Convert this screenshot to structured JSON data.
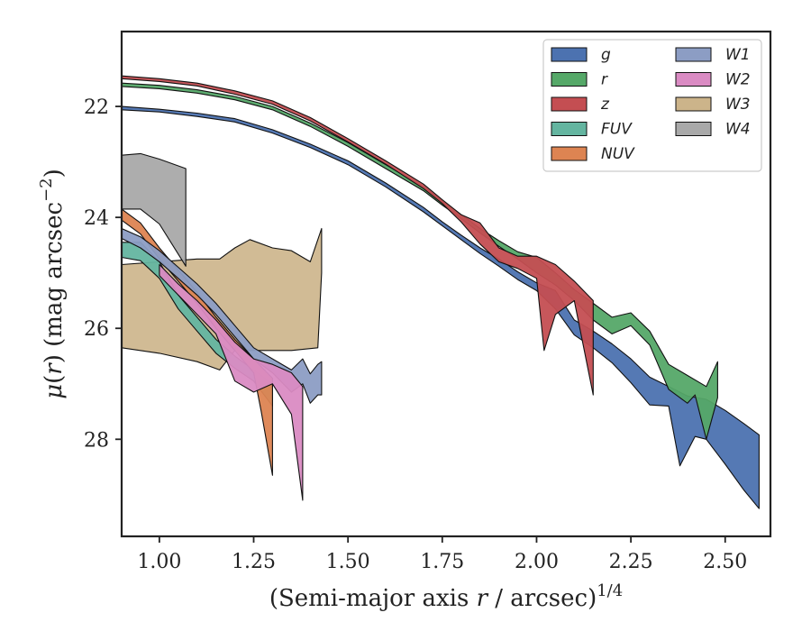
{
  "chart_data": {
    "type": "area",
    "xlabel": "(Semi-major axis r / arcsec)^1/4",
    "ylabel": "μ(r) (mag arcsec^−2)",
    "xlim": [
      0.9,
      2.62
    ],
    "ylim": [
      29.75,
      20.65
    ],
    "y_inverted": true,
    "x_ticks": [
      1.0,
      1.25,
      1.5,
      1.75,
      2.0,
      2.25,
      2.5
    ],
    "x_tick_labels": [
      "1.00",
      "1.25",
      "1.50",
      "1.75",
      "2.00",
      "2.25",
      "2.50"
    ],
    "y_ticks": [
      22,
      24,
      26,
      28
    ],
    "y_tick_labels": [
      "22",
      "24",
      "26",
      "28"
    ],
    "grid": false,
    "legend": {
      "placement": "top-right",
      "columns": 2
    },
    "series": [
      {
        "name": "g",
        "color": "#4c72b0",
        "upper": [
          [
            0.9,
            22.0
          ],
          [
            1.0,
            22.05
          ],
          [
            1.1,
            22.12
          ],
          [
            1.2,
            22.22
          ],
          [
            1.3,
            22.42
          ],
          [
            1.4,
            22.68
          ],
          [
            1.5,
            22.98
          ],
          [
            1.6,
            23.38
          ],
          [
            1.7,
            23.82
          ],
          [
            1.75,
            24.08
          ],
          [
            1.8,
            24.32
          ],
          [
            1.85,
            24.55
          ],
          [
            1.9,
            24.75
          ],
          [
            1.95,
            24.98
          ],
          [
            2.0,
            25.18
          ],
          [
            2.05,
            25.32
          ],
          [
            2.1,
            25.85
          ],
          [
            2.15,
            26.05
          ],
          [
            2.2,
            26.28
          ],
          [
            2.25,
            26.55
          ],
          [
            2.3,
            26.88
          ],
          [
            2.35,
            27.05
          ],
          [
            2.4,
            27.22
          ],
          [
            2.45,
            27.28
          ],
          [
            2.5,
            27.48
          ],
          [
            2.55,
            27.72
          ],
          [
            2.59,
            27.92
          ]
        ],
        "lower": [
          [
            0.9,
            22.06
          ],
          [
            1.0,
            22.1
          ],
          [
            1.1,
            22.18
          ],
          [
            1.2,
            22.28
          ],
          [
            1.3,
            22.48
          ],
          [
            1.4,
            22.74
          ],
          [
            1.5,
            23.05
          ],
          [
            1.6,
            23.45
          ],
          [
            1.7,
            23.9
          ],
          [
            1.75,
            24.15
          ],
          [
            1.8,
            24.4
          ],
          [
            1.85,
            24.65
          ],
          [
            1.9,
            24.88
          ],
          [
            1.95,
            25.12
          ],
          [
            2.0,
            25.32
          ],
          [
            2.05,
            25.65
          ],
          [
            2.1,
            26.12
          ],
          [
            2.15,
            26.35
          ],
          [
            2.2,
            26.62
          ],
          [
            2.25,
            26.98
          ],
          [
            2.3,
            27.38
          ],
          [
            2.35,
            27.4
          ],
          [
            2.38,
            28.48
          ],
          [
            2.42,
            27.95
          ],
          [
            2.45,
            28.0
          ],
          [
            2.5,
            28.45
          ],
          [
            2.55,
            28.92
          ],
          [
            2.59,
            29.25
          ]
        ]
      },
      {
        "name": "r",
        "color": "#55a868",
        "upper": [
          [
            0.9,
            21.58
          ],
          [
            1.0,
            21.62
          ],
          [
            1.1,
            21.7
          ],
          [
            1.2,
            21.82
          ],
          [
            1.3,
            22.0
          ],
          [
            1.4,
            22.3
          ],
          [
            1.5,
            22.65
          ],
          [
            1.6,
            23.05
          ],
          [
            1.7,
            23.45
          ],
          [
            1.75,
            23.7
          ],
          [
            1.8,
            23.95
          ],
          [
            1.85,
            24.2
          ],
          [
            1.9,
            24.42
          ],
          [
            1.95,
            24.62
          ],
          [
            2.0,
            24.72
          ],
          [
            2.05,
            25.0
          ],
          [
            2.1,
            25.3
          ],
          [
            2.15,
            25.55
          ],
          [
            2.2,
            25.8
          ],
          [
            2.25,
            25.72
          ],
          [
            2.3,
            26.05
          ],
          [
            2.35,
            26.65
          ],
          [
            2.4,
            26.85
          ],
          [
            2.45,
            27.05
          ],
          [
            2.48,
            26.6
          ]
        ],
        "lower": [
          [
            0.9,
            21.64
          ],
          [
            1.0,
            21.68
          ],
          [
            1.1,
            21.76
          ],
          [
            1.2,
            21.88
          ],
          [
            1.3,
            22.06
          ],
          [
            1.4,
            22.36
          ],
          [
            1.5,
            22.72
          ],
          [
            1.6,
            23.12
          ],
          [
            1.7,
            23.52
          ],
          [
            1.75,
            23.78
          ],
          [
            1.8,
            24.02
          ],
          [
            1.85,
            24.28
          ],
          [
            1.9,
            24.52
          ],
          [
            1.95,
            24.75
          ],
          [
            2.0,
            25.0
          ],
          [
            2.05,
            25.22
          ],
          [
            2.1,
            25.5
          ],
          [
            2.15,
            25.85
          ],
          [
            2.2,
            26.1
          ],
          [
            2.25,
            25.95
          ],
          [
            2.3,
            26.3
          ],
          [
            2.35,
            27.1
          ],
          [
            2.4,
            27.35
          ],
          [
            2.42,
            27.2
          ],
          [
            2.45,
            28.0
          ],
          [
            2.48,
            27.25
          ]
        ]
      },
      {
        "name": "z",
        "color": "#c44e52",
        "upper": [
          [
            0.9,
            21.45
          ],
          [
            1.0,
            21.5
          ],
          [
            1.1,
            21.58
          ],
          [
            1.2,
            21.72
          ],
          [
            1.3,
            21.9
          ],
          [
            1.4,
            22.2
          ],
          [
            1.5,
            22.58
          ],
          [
            1.6,
            22.98
          ],
          [
            1.7,
            23.4
          ],
          [
            1.75,
            23.68
          ],
          [
            1.8,
            23.95
          ],
          [
            1.85,
            24.1
          ],
          [
            1.9,
            24.55
          ],
          [
            1.95,
            24.7
          ],
          [
            2.0,
            24.7
          ],
          [
            2.05,
            24.85
          ],
          [
            2.1,
            25.15
          ],
          [
            2.15,
            25.5
          ]
        ],
        "lower": [
          [
            0.9,
            21.5
          ],
          [
            1.0,
            21.55
          ],
          [
            1.1,
            21.63
          ],
          [
            1.2,
            21.78
          ],
          [
            1.3,
            21.96
          ],
          [
            1.4,
            22.26
          ],
          [
            1.5,
            22.64
          ],
          [
            1.6,
            23.04
          ],
          [
            1.7,
            23.48
          ],
          [
            1.75,
            23.75
          ],
          [
            1.8,
            24.08
          ],
          [
            1.85,
            24.48
          ],
          [
            1.9,
            24.8
          ],
          [
            1.95,
            24.92
          ],
          [
            2.0,
            25.1
          ],
          [
            2.02,
            26.4
          ],
          [
            2.05,
            25.75
          ],
          [
            2.1,
            25.5
          ],
          [
            2.15,
            27.2
          ]
        ]
      },
      {
        "name": "FUV",
        "color": "#64b5a0",
        "upper": [
          [
            0.9,
            24.45
          ],
          [
            0.95,
            24.45
          ],
          [
            1.0,
            24.8
          ],
          [
            1.05,
            25.4
          ],
          [
            1.1,
            25.8
          ],
          [
            1.15,
            26.2
          ],
          [
            1.2,
            26.5
          ],
          [
            1.25,
            26.75
          ],
          [
            1.3,
            27.0
          ]
        ],
        "lower": [
          [
            0.9,
            24.72
          ],
          [
            0.95,
            24.78
          ],
          [
            1.0,
            25.1
          ],
          [
            1.05,
            25.65
          ],
          [
            1.1,
            26.05
          ],
          [
            1.15,
            26.45
          ],
          [
            1.2,
            26.72
          ],
          [
            1.25,
            26.95
          ],
          [
            1.3,
            27.4
          ]
        ]
      },
      {
        "name": "NUV",
        "color": "#dd8452",
        "upper": [
          [
            0.9,
            23.85
          ],
          [
            0.95,
            24.1
          ],
          [
            1.0,
            24.55
          ],
          [
            1.05,
            24.95
          ],
          [
            1.1,
            25.35
          ],
          [
            1.15,
            25.8
          ],
          [
            1.2,
            26.2
          ],
          [
            1.25,
            26.55
          ],
          [
            1.3,
            26.9
          ]
        ],
        "lower": [
          [
            0.9,
            24.05
          ],
          [
            0.95,
            24.3
          ],
          [
            1.0,
            24.75
          ],
          [
            1.05,
            25.15
          ],
          [
            1.1,
            25.55
          ],
          [
            1.15,
            26.0
          ],
          [
            1.2,
            26.4
          ],
          [
            1.25,
            26.8
          ],
          [
            1.27,
            27.5
          ],
          [
            1.3,
            28.65
          ]
        ]
      },
      {
        "name": "W1",
        "color": "#8c9dc4",
        "upper": [
          [
            0.9,
            24.2
          ],
          [
            0.95,
            24.35
          ],
          [
            1.0,
            24.6
          ],
          [
            1.05,
            24.9
          ],
          [
            1.1,
            25.2
          ],
          [
            1.15,
            25.55
          ],
          [
            1.2,
            25.95
          ],
          [
            1.25,
            26.35
          ],
          [
            1.3,
            26.55
          ],
          [
            1.35,
            26.75
          ],
          [
            1.38,
            26.55
          ],
          [
            1.4,
            26.82
          ],
          [
            1.42,
            26.65
          ],
          [
            1.43,
            26.6
          ]
        ],
        "lower": [
          [
            0.9,
            24.38
          ],
          [
            0.95,
            24.55
          ],
          [
            1.0,
            24.8
          ],
          [
            1.05,
            25.1
          ],
          [
            1.1,
            25.4
          ],
          [
            1.15,
            25.75
          ],
          [
            1.2,
            26.15
          ],
          [
            1.25,
            26.55
          ],
          [
            1.3,
            26.8
          ],
          [
            1.35,
            27.15
          ],
          [
            1.38,
            27.0
          ],
          [
            1.4,
            27.35
          ],
          [
            1.42,
            27.2
          ],
          [
            1.43,
            27.2
          ]
        ]
      },
      {
        "name": "W2",
        "color": "#da8bc3",
        "upper": [
          [
            1.0,
            24.85
          ],
          [
            1.05,
            25.2
          ],
          [
            1.1,
            25.5
          ],
          [
            1.15,
            25.85
          ],
          [
            1.2,
            26.25
          ],
          [
            1.25,
            26.55
          ],
          [
            1.3,
            26.65
          ],
          [
            1.35,
            26.8
          ],
          [
            1.38,
            27.05
          ]
        ],
        "lower": [
          [
            1.0,
            25.05
          ],
          [
            1.05,
            25.4
          ],
          [
            1.1,
            25.75
          ],
          [
            1.15,
            26.1
          ],
          [
            1.2,
            26.95
          ],
          [
            1.25,
            27.15
          ],
          [
            1.3,
            27.0
          ],
          [
            1.35,
            27.55
          ],
          [
            1.38,
            29.1
          ]
        ]
      },
      {
        "name": "W3",
        "color": "#ccb48a",
        "upper": [
          [
            0.9,
            24.85
          ],
          [
            1.0,
            24.8
          ],
          [
            1.1,
            24.75
          ],
          [
            1.16,
            24.75
          ],
          [
            1.2,
            24.55
          ],
          [
            1.24,
            24.4
          ],
          [
            1.3,
            24.55
          ],
          [
            1.35,
            24.6
          ],
          [
            1.4,
            24.8
          ],
          [
            1.43,
            24.2
          ]
        ],
        "lower": [
          [
            0.9,
            26.35
          ],
          [
            1.0,
            26.45
          ],
          [
            1.1,
            26.6
          ],
          [
            1.16,
            26.75
          ],
          [
            1.2,
            26.4
          ],
          [
            1.3,
            26.4
          ],
          [
            1.35,
            26.4
          ],
          [
            1.42,
            26.35
          ],
          [
            1.43,
            25.0
          ]
        ]
      },
      {
        "name": "W4",
        "color": "#a9a9a9",
        "upper": [
          [
            0.9,
            22.88
          ],
          [
            0.95,
            22.85
          ],
          [
            1.0,
            22.95
          ],
          [
            1.07,
            23.12
          ]
        ],
        "lower": [
          [
            0.9,
            23.85
          ],
          [
            0.95,
            23.85
          ],
          [
            1.0,
            24.12
          ],
          [
            1.07,
            24.88
          ]
        ]
      }
    ]
  }
}
